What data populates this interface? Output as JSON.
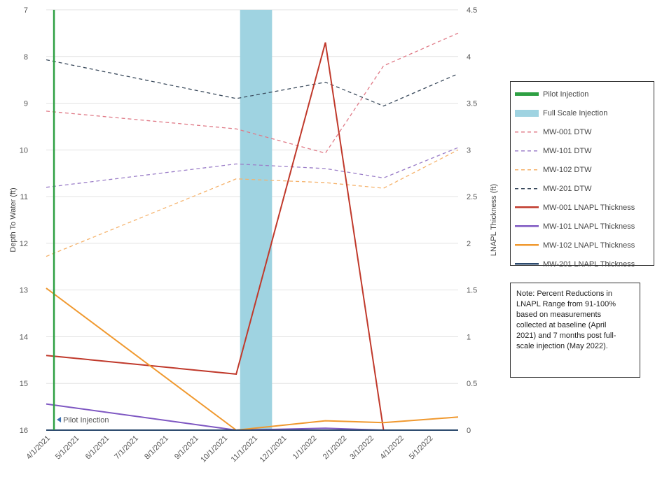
{
  "chart_data": {
    "type": "line",
    "x_ticks": [
      "4/1/2021",
      "5/1/2021",
      "6/1/2021",
      "7/1/2021",
      "8/1/2021",
      "9/1/2021",
      "10/1/2021",
      "11/1/2021",
      "12/1/2021",
      "1/1/2022",
      "2/1/2022",
      "3/1/2022",
      "4/1/2022",
      "5/1/2022"
    ],
    "xlim": [
      "2021-04-01",
      "2022-05-31"
    ],
    "y_left": {
      "label": "Depth To Water (ft)",
      "ticks": [
        "7",
        "8",
        "9",
        "10",
        "11",
        "12",
        "13",
        "14",
        "15",
        "16"
      ],
      "lim": [
        7,
        16
      ],
      "inverted": true
    },
    "y_right": {
      "label": "LNAPL Thickness (ft)",
      "ticks": [
        "0",
        "0.5",
        "1",
        "1.5",
        "2",
        "2.5",
        "3",
        "3.5",
        "4",
        "4.5"
      ],
      "lim": [
        0,
        4.5
      ]
    },
    "grid": "horizontal",
    "legend_position": "right",
    "pilot_injection": {
      "date": "2021-04-09",
      "label": "Pilot Injection",
      "color": "#2ea043"
    },
    "full_scale_injection": {
      "start": "2021-10-18",
      "end": "2021-11-20",
      "color": "#9fd3e1"
    },
    "series": [
      {
        "name": "MW-001 DTW",
        "axis": "left",
        "style": "dashed",
        "color": "#e07a87",
        "points": [
          [
            "2021-04-01",
            9.17
          ],
          [
            "2021-10-14",
            9.55
          ],
          [
            "2022-01-14",
            10.07
          ],
          [
            "2022-03-15",
            8.2
          ],
          [
            "2022-05-31",
            7.5
          ]
        ]
      },
      {
        "name": "MW-101 DTW",
        "axis": "left",
        "style": "dashed",
        "color": "#9b7ec8",
        "points": [
          [
            "2021-04-01",
            10.8
          ],
          [
            "2021-10-14",
            10.3
          ],
          [
            "2022-01-14",
            10.4
          ],
          [
            "2022-03-15",
            10.6
          ],
          [
            "2022-05-31",
            9.95
          ]
        ]
      },
      {
        "name": "MW-102 DTW",
        "axis": "left",
        "style": "dashed",
        "color": "#f5b26b",
        "points": [
          [
            "2021-04-01",
            12.28
          ],
          [
            "2021-10-14",
            10.62
          ],
          [
            "2022-01-14",
            10.7
          ],
          [
            "2022-03-15",
            10.82
          ],
          [
            "2022-05-31",
            10.0
          ]
        ]
      },
      {
        "name": "MW-201 DTW",
        "axis": "left",
        "style": "dashed",
        "color": "#3a4a5c",
        "points": [
          [
            "2021-04-01",
            8.07
          ],
          [
            "2021-10-14",
            8.9
          ],
          [
            "2022-01-14",
            8.55
          ],
          [
            "2022-03-15",
            9.06
          ],
          [
            "2022-05-31",
            8.37
          ]
        ]
      },
      {
        "name": "MW-001 LNAPL Thickness",
        "axis": "right",
        "style": "solid",
        "color": "#c0392b",
        "points": [
          [
            "2021-04-01",
            0.8
          ],
          [
            "2021-10-14",
            0.6
          ],
          [
            "2022-01-14",
            4.15
          ],
          [
            "2022-03-15",
            0.0
          ]
        ]
      },
      {
        "name": "MW-101 LNAPL Thickness",
        "axis": "right",
        "style": "solid",
        "color": "#7e57c2",
        "points": [
          [
            "2021-04-01",
            0.28
          ],
          [
            "2021-10-14",
            0.0
          ],
          [
            "2022-01-14",
            0.02
          ],
          [
            "2022-03-15",
            0.0
          ],
          [
            "2022-05-31",
            0.0
          ]
        ]
      },
      {
        "name": "MW-102 LNAPL Thickness",
        "axis": "right",
        "style": "solid",
        "color": "#f0992f",
        "points": [
          [
            "2021-04-01",
            1.52
          ],
          [
            "2021-10-14",
            0.0
          ],
          [
            "2022-01-14",
            0.1
          ],
          [
            "2022-03-15",
            0.08
          ],
          [
            "2022-05-31",
            0.14
          ]
        ]
      },
      {
        "name": "MW-201 LNAPL Thickness",
        "axis": "right",
        "style": "solid",
        "color": "#2c4a6e",
        "points": [
          [
            "2021-04-01",
            0.0
          ],
          [
            "2021-10-14",
            0.0
          ],
          [
            "2022-01-14",
            0.0
          ],
          [
            "2022-03-15",
            0.0
          ],
          [
            "2022-05-31",
            0.0
          ]
        ]
      }
    ]
  },
  "legend": {
    "items": [
      {
        "label": "Pilot Injection",
        "kind": "bar",
        "color": "#2ea043"
      },
      {
        "label": "Full Scale Injection",
        "kind": "block",
        "color": "#9fd3e1"
      },
      {
        "label": "MW-001 DTW",
        "kind": "dashed",
        "color": "#e07a87"
      },
      {
        "label": "MW-101 DTW",
        "kind": "dashed",
        "color": "#9b7ec8"
      },
      {
        "label": "MW-102 DTW",
        "kind": "dashed",
        "color": "#f5b26b"
      },
      {
        "label": "MW-201 DTW",
        "kind": "dashed",
        "color": "#3a4a5c"
      },
      {
        "label": "MW-001 LNAPL Thickness",
        "kind": "solid",
        "color": "#c0392b"
      },
      {
        "label": "MW-101 LNAPL Thickness",
        "kind": "solid",
        "color": "#7e57c2"
      },
      {
        "label": "MW-102 LNAPL Thickness",
        "kind": "solid",
        "color": "#f0992f"
      },
      {
        "label": "MW-201 LNAPL Thickness",
        "kind": "solid",
        "color": "#2c4a6e"
      }
    ]
  },
  "note": {
    "lines": [
      "Note: Percent Reductions in",
      "LNAPL Range from 91-100%",
      "based on measurements",
      "collected at baseline (April",
      "2021) and 7 months post full-",
      "scale injection (May 2022)."
    ]
  }
}
